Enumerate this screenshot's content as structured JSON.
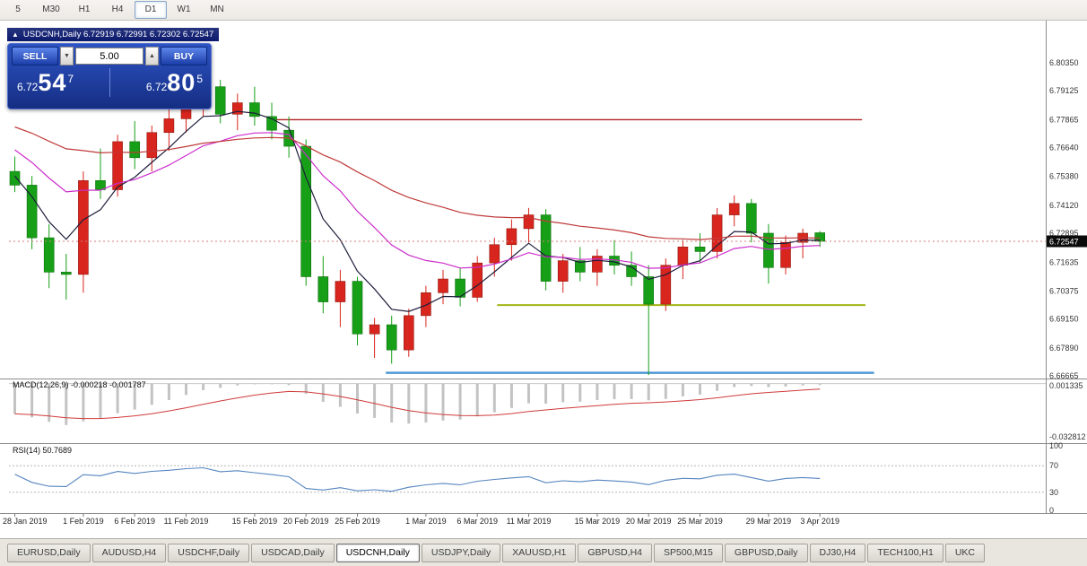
{
  "toolbar": {
    "timeframes": [
      "5",
      "M30",
      "H1",
      "H4",
      "D1",
      "W1",
      "MN"
    ],
    "active": "D1"
  },
  "chart_title": {
    "icon": "▲",
    "text": "USDCNH,Daily 6.72919 6.72991 6.72302 6.72547"
  },
  "trade_panel": {
    "sell_label": "SELL",
    "buy_label": "BUY",
    "volume": "5.00",
    "sell_price": {
      "prefix": "6.72",
      "big": "54",
      "sup": "7"
    },
    "buy_price": {
      "prefix": "6.72",
      "big": "80",
      "sup": "5"
    }
  },
  "chart_data": {
    "type": "candlestick",
    "title": "USDCNH,Daily",
    "ohlc_display": {
      "open": "6.72919",
      "high": "6.72991",
      "low": "6.72302",
      "close": "6.72547"
    },
    "up_color": "#d8251d",
    "down_color": "#17a017",
    "candles": [
      [
        6.756,
        6.7625,
        6.747,
        6.75
      ],
      [
        6.75,
        6.754,
        6.722,
        6.727
      ],
      [
        6.727,
        6.733,
        6.705,
        6.712
      ],
      [
        6.712,
        6.72,
        6.7,
        6.711
      ],
      [
        6.711,
        6.756,
        6.703,
        6.752
      ],
      [
        6.752,
        6.766,
        6.744,
        6.748
      ],
      [
        6.748,
        6.772,
        6.745,
        6.769
      ],
      [
        6.769,
        6.778,
        6.757,
        6.762
      ],
      [
        6.762,
        6.776,
        6.756,
        6.773
      ],
      [
        6.773,
        6.784,
        6.765,
        6.779
      ],
      [
        6.779,
        6.792,
        6.773,
        6.788
      ],
      [
        6.788,
        6.7985,
        6.78,
        6.793
      ],
      [
        6.793,
        6.796,
        6.777,
        6.781
      ],
      [
        6.781,
        6.79,
        6.774,
        6.786
      ],
      [
        6.786,
        6.793,
        6.776,
        6.78
      ],
      [
        6.78,
        6.786,
        6.77,
        6.774
      ],
      [
        6.774,
        6.78,
        6.762,
        6.767
      ],
      [
        6.767,
        6.77,
        6.706,
        6.71
      ],
      [
        6.71,
        6.719,
        6.694,
        6.699
      ],
      [
        6.699,
        6.713,
        6.688,
        6.708
      ],
      [
        6.708,
        6.71,
        6.68,
        6.685
      ],
      [
        6.685,
        6.692,
        6.6745,
        6.689
      ],
      [
        6.689,
        6.693,
        6.672,
        6.678
      ],
      [
        6.678,
        6.696,
        6.675,
        6.693
      ],
      [
        6.693,
        6.706,
        6.688,
        6.703
      ],
      [
        6.703,
        6.713,
        6.698,
        6.709
      ],
      [
        6.709,
        6.714,
        6.697,
        6.701
      ],
      [
        6.701,
        6.719,
        6.699,
        6.716
      ],
      [
        6.716,
        6.727,
        6.71,
        6.724
      ],
      [
        6.724,
        6.735,
        6.717,
        6.731
      ],
      [
        6.731,
        6.74,
        6.725,
        6.737
      ],
      [
        6.737,
        6.7395,
        6.704,
        6.708
      ],
      [
        6.708,
        6.72,
        6.703,
        6.717
      ],
      [
        6.717,
        6.723,
        6.708,
        6.712
      ],
      [
        6.712,
        6.722,
        6.706,
        6.719
      ],
      [
        6.719,
        6.726,
        6.711,
        6.715
      ],
      [
        6.715,
        6.721,
        6.706,
        6.71
      ],
      [
        6.71,
        6.715,
        6.667,
        6.698
      ],
      [
        6.698,
        6.718,
        6.695,
        6.715
      ],
      [
        6.715,
        6.726,
        6.709,
        6.723
      ],
      [
        6.723,
        6.729,
        6.716,
        6.721
      ],
      [
        6.721,
        6.74,
        6.718,
        6.737
      ],
      [
        6.737,
        6.7455,
        6.732,
        6.742
      ],
      [
        6.742,
        6.744,
        6.725,
        6.729
      ],
      [
        6.729,
        6.733,
        6.707,
        6.714
      ],
      [
        6.714,
        6.728,
        6.711,
        6.725
      ],
      [
        6.725,
        6.731,
        6.718,
        6.729
      ],
      [
        6.72919,
        6.72991,
        6.72302,
        6.72547
      ]
    ],
    "x_labels": [
      {
        "i": 0,
        "t": "28 Jan 2019"
      },
      {
        "i": 4,
        "t": "1 Feb 2019"
      },
      {
        "i": 7,
        "t": "6 Feb 2019"
      },
      {
        "i": 10,
        "t": "11 Feb 2019"
      },
      {
        "i": 14,
        "t": "15 Feb 2019"
      },
      {
        "i": 17,
        "t": "20 Feb 2019"
      },
      {
        "i": 20,
        "t": "25 Feb 2019"
      },
      {
        "i": 24,
        "t": "1 Mar 2019"
      },
      {
        "i": 27,
        "t": "6 Mar 2019"
      },
      {
        "i": 30,
        "t": "11 Mar 2019"
      },
      {
        "i": 34,
        "t": "15 Mar 2019"
      },
      {
        "i": 37,
        "t": "20 Mar 2019"
      },
      {
        "i": 40,
        "t": "25 Mar 2019"
      },
      {
        "i": 44,
        "t": "29 Mar 2019"
      },
      {
        "i": 47,
        "t": "3 Apr 2019"
      }
    ],
    "y_axis": {
      "min": 6.6659,
      "max": 6.8211,
      "tick_labels": [
        "6.80350",
        "6.79125",
        "6.77865",
        "6.76640",
        "6.75380",
        "6.74120",
        "6.72895",
        "6.71635",
        "6.70375",
        "6.69150",
        "6.67890",
        "6.66665"
      ],
      "current_price": "6.72547",
      "current_value": 6.72547
    },
    "moving_averages": [
      {
        "name": "fast",
        "period": 5,
        "seed": 6.756,
        "color": "#1d1d3c"
      },
      {
        "name": "medium",
        "period": 13,
        "seed": 6.768,
        "color": "#cc2dcc"
      },
      {
        "name": "slow",
        "period": 34,
        "seed": 6.777,
        "color": "#c03a3a"
      }
    ],
    "h_lines": [
      {
        "name": "resistance-line-red",
        "value": 6.7786,
        "color": "#b22222",
        "width": 1.3,
        "x1_i": 15.6,
        "x2_i": 49.8
      },
      {
        "name": "support-line-olive",
        "value": 6.6976,
        "color": "#a3b414",
        "width": 2,
        "x1_i": 28.5,
        "x2_i": 50.0
      },
      {
        "name": "support-line-blue",
        "value": 6.668,
        "color": "#4f97d4",
        "width": 2.5,
        "x1_i": 22.0,
        "x2_i": 50.5
      }
    ],
    "macd": {
      "label": "MACD(12,26,9) -0.000218 -0.001787",
      "scale_max_label": "0.001335",
      "scale_min_label": "-0.032812",
      "scale_max": 0.001335,
      "scale_min": -0.032812,
      "fast": 12,
      "slow": 26,
      "signal": 9,
      "fast_seed": 6.772,
      "slow_seed": 6.789,
      "histogram_color": "#c3c3c3",
      "signal_color": "#d03a3a"
    },
    "rsi": {
      "label": "RSI(14) 50.7689",
      "period": 14,
      "seed_gain": 0.004,
      "seed_loss": 0.003,
      "levels": [
        100,
        70,
        30,
        0
      ],
      "dashed_levels": [
        70,
        30
      ],
      "color": "#5585c0"
    }
  },
  "tabs": {
    "items": [
      "EURUSD,Daily",
      "AUDUSD,H4",
      "USDCHF,Daily",
      "USDCAD,Daily",
      "USDCNH,Daily",
      "USDJPY,Daily",
      "XAUUSD,H1",
      "GBPUSD,H4",
      "SP500,M15",
      "GBPUSD,Daily",
      "DJ30,H4",
      "TECH100,H1",
      "UKC"
    ],
    "active": "USDCNH,Daily"
  }
}
